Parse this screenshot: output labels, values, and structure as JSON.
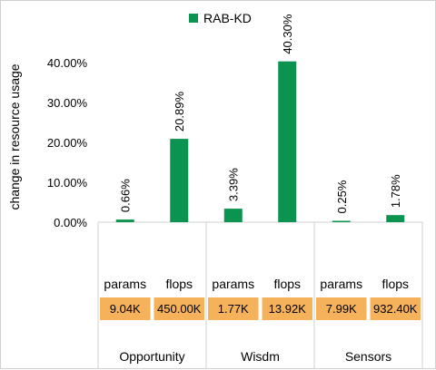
{
  "colors": {
    "bar": "#0b9450",
    "box": "#f5b25a",
    "axis": "#d0d0d0",
    "divider": "#d0d0d0"
  },
  "chart_data": {
    "type": "bar",
    "legend": {
      "label": "RAB-KD",
      "position": "top"
    },
    "ylabel": "change in resource usage",
    "ylim": [
      0,
      45
    ],
    "yticks": [
      0,
      10,
      20,
      30,
      40
    ],
    "ytick_labels": [
      "0.00%",
      "10.00%",
      "20.00%",
      "30.00%",
      "40.00%"
    ],
    "groups": [
      "Opportunity",
      "Wisdm",
      "Sensors"
    ],
    "categories": [
      "params",
      "flops",
      "params",
      "flops",
      "params",
      "flops"
    ],
    "series": [
      {
        "name": "RAB-KD",
        "values": [
          0.66,
          20.89,
          3.39,
          40.3,
          0.25,
          1.78
        ],
        "labels": [
          "0.66%",
          "20.89%",
          "3.39%",
          "40.30%",
          "0.25%",
          "1.78%"
        ]
      }
    ],
    "baseline_values": [
      "9.04K",
      "450.00K",
      "1.77K",
      "13.92K",
      "7.99K",
      "932.40K"
    ]
  }
}
